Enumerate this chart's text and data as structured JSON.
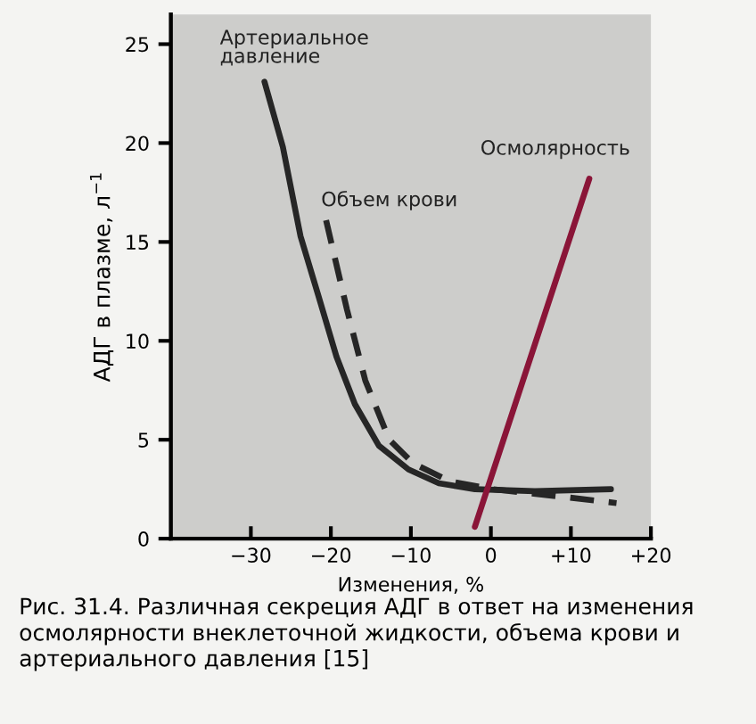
{
  "chart_data": {
    "type": "line",
    "xlabel": "Изменения, %",
    "ylabel": "АДГ в плазме, л$^{−1}$",
    "xlim": [
      -40,
      20
    ],
    "ylim": [
      0,
      26.5
    ],
    "xticks": [
      {
        "value": -30,
        "label": "−30"
      },
      {
        "value": -20,
        "label": "−20"
      },
      {
        "value": -10,
        "label": "−10"
      },
      0,
      {
        "value": 10,
        "label": "+10"
      },
      {
        "value": 20,
        "label": "+20"
      }
    ],
    "yticks": [
      0,
      5,
      10,
      15,
      20,
      25
    ],
    "grid": false,
    "legend": false,
    "marker": "none",
    "series": [
      {
        "name": "Артериальное\nдавление",
        "color": "#262626",
        "line_style": "solid",
        "x": [
          -28.3,
          -26.0,
          -23.8,
          -21.5,
          -19.3,
          -17.0,
          -14.0,
          -10.3,
          -6.5,
          -2,
          5.5,
          15
        ],
        "values": [
          23.1,
          19.8,
          15.3,
          12.2,
          9.2,
          6.8,
          4.7,
          3.5,
          2.8,
          2.5,
          2.4,
          2.5
        ]
      },
      {
        "name": "Объем крови",
        "color": "#262626",
        "line_style": "dashed",
        "x": [
          -20.6,
          -18.0,
          -15.7,
          -12.7,
          -9.7,
          -5.1,
          0.2,
          9.3,
          15.7
        ],
        "values": [
          16.1,
          11.6,
          8.0,
          5.0,
          3.8,
          2.9,
          2.5,
          2.1,
          1.8
        ]
      },
      {
        "name": "Осмолярность",
        "color": "#8a1538",
        "line_style": "solid",
        "x": [
          -2.0,
          12.3
        ],
        "values": [
          0.6,
          18.2
        ]
      }
    ],
    "annotations": [
      "Рис. 31.4. Различная секреция АДГ в ответ на изменения осмолярности внеклеточной жидкости, объема крови и артериального давления [15]"
    ]
  }
}
